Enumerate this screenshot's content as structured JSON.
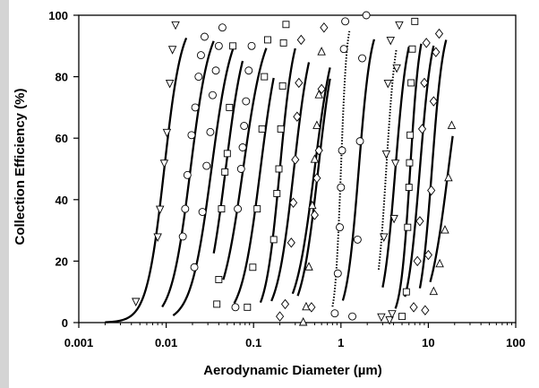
{
  "chart_data": {
    "type": "scatter",
    "title": "",
    "xlabel": "Aerodynamic Diameter  (µm)",
    "ylabel": "Collection Efficiency  (%)",
    "xscale": "log",
    "xlim": [
      0.001,
      100
    ],
    "ylim": [
      0,
      100
    ],
    "xticks": [
      "0.001",
      "0.01",
      "0.1",
      "1",
      "10",
      "100"
    ],
    "yticks": [
      "0",
      "20",
      "40",
      "60",
      "80",
      "100"
    ],
    "grid": false,
    "legend": "none",
    "colors": {
      "line": "#000000",
      "axis": "#000000",
      "left_bar": "#d4d4d4"
    },
    "series": [
      {
        "d50": 0.0095,
        "slope": 10,
        "style": "solid",
        "marker": "triangle-down",
        "curve_range": [
          0.002,
          0.017
        ],
        "points": [
          [
            0.0045,
            7
          ],
          [
            0.008,
            28
          ],
          [
            0.0085,
            37
          ],
          [
            0.0095,
            52
          ],
          [
            0.0102,
            62
          ],
          [
            0.011,
            78
          ],
          [
            0.0118,
            89
          ],
          [
            0.0128,
            97
          ]
        ]
      },
      {
        "d50": 0.019,
        "slope": 9,
        "style": "solid",
        "marker": "circle",
        "curve_range": [
          0.009,
          0.035
        ],
        "points": [
          [
            0.0155,
            28
          ],
          [
            0.0165,
            37
          ],
          [
            0.0175,
            48
          ],
          [
            0.0195,
            61
          ],
          [
            0.0215,
            70
          ],
          [
            0.0235,
            80
          ],
          [
            0.025,
            87
          ],
          [
            0.0275,
            93
          ]
        ]
      },
      {
        "d50": 0.033,
        "slope": 8.5,
        "style": "solid",
        "marker": "circle",
        "curve_range": [
          0.012,
          0.06
        ],
        "points": [
          [
            0.021,
            18
          ],
          [
            0.026,
            36
          ],
          [
            0.029,
            51
          ],
          [
            0.032,
            62
          ],
          [
            0.034,
            74
          ],
          [
            0.037,
            82
          ],
          [
            0.04,
            90
          ],
          [
            0.044,
            96
          ]
        ]
      },
      {
        "d50": 0.048,
        "slope": 9,
        "style": "solid",
        "marker": "square",
        "curve_range": [
          0.035,
          0.075
        ],
        "points": [
          [
            0.038,
            6
          ],
          [
            0.04,
            14
          ],
          [
            0.043,
            37
          ],
          [
            0.047,
            49
          ],
          [
            0.05,
            55
          ],
          [
            0.053,
            70
          ],
          [
            0.058,
            90
          ]
        ]
      },
      {
        "d50": 0.076,
        "slope": 8,
        "style": "solid",
        "marker": "circle",
        "curve_range": [
          0.045,
          0.14
        ],
        "points": [
          [
            0.062,
            5
          ],
          [
            0.066,
            37
          ],
          [
            0.072,
            50
          ],
          [
            0.075,
            57
          ],
          [
            0.078,
            64
          ],
          [
            0.082,
            72
          ],
          [
            0.088,
            82
          ],
          [
            0.095,
            90
          ]
        ]
      },
      {
        "d50": 0.12,
        "slope": 9,
        "style": "solid",
        "marker": "square",
        "curve_range": [
          0.06,
          0.17
        ],
        "points": [
          [
            0.085,
            5
          ],
          [
            0.098,
            18
          ],
          [
            0.11,
            37
          ],
          [
            0.125,
            63
          ],
          [
            0.133,
            80
          ],
          [
            0.145,
            92
          ]
        ]
      },
      {
        "d50": 0.2,
        "slope": 12,
        "style": "solid",
        "marker": "square",
        "curve_range": [
          0.12,
          0.3
        ],
        "points": [
          [
            0.17,
            27
          ],
          [
            0.185,
            42
          ],
          [
            0.195,
            50
          ],
          [
            0.205,
            63
          ],
          [
            0.215,
            77
          ],
          [
            0.22,
            91
          ],
          [
            0.235,
            97
          ]
        ]
      },
      {
        "d50": 0.29,
        "slope": 10,
        "style": "solid",
        "marker": "diamond",
        "curve_range": [
          0.16,
          0.43
        ],
        "points": [
          [
            0.2,
            2
          ],
          [
            0.23,
            6
          ],
          [
            0.27,
            26
          ],
          [
            0.285,
            39
          ],
          [
            0.3,
            53
          ],
          [
            0.315,
            67
          ],
          [
            0.33,
            78
          ],
          [
            0.35,
            92
          ]
        ]
      },
      {
        "d50": 0.5,
        "slope": 9,
        "style": "solid",
        "marker": "triangle-up",
        "curve_range": [
          0.28,
          0.75
        ],
        "points": [
          [
            0.37,
            0
          ],
          [
            0.4,
            5
          ],
          [
            0.43,
            18
          ],
          [
            0.47,
            38
          ],
          [
            0.5,
            53
          ],
          [
            0.53,
            64
          ],
          [
            0.56,
            74
          ],
          [
            0.6,
            88
          ]
        ]
      },
      {
        "d50": 0.55,
        "slope": 10,
        "style": "solid",
        "marker": "diamond",
        "curve_range": [
          0.32,
          0.75
        ],
        "points": [
          [
            0.46,
            5
          ],
          [
            0.5,
            35
          ],
          [
            0.53,
            47
          ],
          [
            0.56,
            56
          ],
          [
            0.6,
            76
          ],
          [
            0.64,
            96
          ]
        ]
      },
      {
        "d50": 1.0,
        "slope": 30,
        "style": "dotted",
        "marker": "circle",
        "curve_range": [
          0.8,
          1.25
        ],
        "points": [
          [
            0.85,
            3
          ],
          [
            0.92,
            16
          ],
          [
            0.97,
            31
          ],
          [
            1.0,
            44
          ],
          [
            1.03,
            56
          ],
          [
            1.08,
            89
          ],
          [
            1.12,
            98
          ]
        ]
      },
      {
        "d50": 1.6,
        "slope": 14,
        "style": "solid",
        "marker": "circle",
        "curve_range": [
          1.05,
          2.4
        ],
        "points": [
          [
            1.35,
            2
          ],
          [
            1.55,
            27
          ],
          [
            1.65,
            59
          ],
          [
            1.75,
            86
          ],
          [
            1.95,
            100
          ]
        ]
      },
      {
        "d50": 3.3,
        "slope": 18,
        "style": "dotted",
        "marker": "triangle-down",
        "curve_range": [
          2.7,
          4.3
        ],
        "points": [
          [
            2.9,
            2
          ],
          [
            3.1,
            28
          ],
          [
            3.3,
            55
          ],
          [
            3.45,
            78
          ],
          [
            3.7,
            92
          ]
        ]
      },
      {
        "d50": 4.2,
        "slope": 14,
        "style": "solid",
        "marker": "triangle-down",
        "curve_range": [
          3.0,
          6.0
        ],
        "points": [
          [
            3.6,
            1
          ],
          [
            3.85,
            3
          ],
          [
            4.05,
            34
          ],
          [
            4.2,
            52
          ],
          [
            4.35,
            83
          ],
          [
            4.65,
            97
          ]
        ]
      },
      {
        "d50": 6.2,
        "slope": 18,
        "style": "solid",
        "marker": "square",
        "curve_range": [
          4.2,
          8.3
        ],
        "points": [
          [
            5.0,
            2
          ],
          [
            5.6,
            10
          ],
          [
            5.8,
            31
          ],
          [
            6.0,
            44
          ],
          [
            6.1,
            52
          ],
          [
            6.2,
            61
          ],
          [
            6.35,
            78
          ],
          [
            6.55,
            89
          ],
          [
            7.0,
            98
          ]
        ]
      },
      {
        "d50": 8.0,
        "slope": 14,
        "style": "solid",
        "marker": "diamond",
        "curve_range": [
          5.4,
          11.5
        ],
        "points": [
          [
            6.8,
            5
          ],
          [
            7.5,
            20
          ],
          [
            8.0,
            33
          ],
          [
            8.5,
            63
          ],
          [
            9.0,
            78
          ],
          [
            9.5,
            91
          ]
        ]
      },
      {
        "d50": 11,
        "slope": 15,
        "style": "solid",
        "marker": "diamond",
        "curve_range": [
          8.0,
          16
        ],
        "points": [
          [
            9.2,
            4
          ],
          [
            10.0,
            22
          ],
          [
            10.8,
            43
          ],
          [
            11.5,
            72
          ],
          [
            12.2,
            88
          ],
          [
            13.3,
            94
          ]
        ]
      },
      {
        "d50": 17,
        "slope": 9,
        "style": "solid",
        "marker": "triangle-up",
        "curve_range": [
          10.5,
          19
        ],
        "points": [
          [
            11.5,
            10
          ],
          [
            13.5,
            19
          ],
          [
            15.5,
            30
          ],
          [
            17.0,
            47
          ],
          [
            18.5,
            64
          ]
        ]
      }
    ]
  }
}
